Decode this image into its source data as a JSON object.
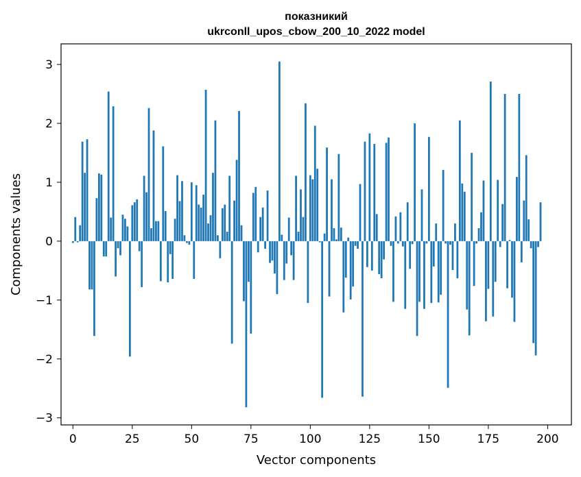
{
  "chart_data": {
    "type": "bar",
    "title_line1": "показникий",
    "title_line2": "ukrconll_upos_cbow_200_10_2022 model",
    "xlabel": "Vector components",
    "ylabel": "Components values",
    "xlim": [
      -5,
      210
    ],
    "ylim": [
      -3.12,
      3.35
    ],
    "x_ticks": [
      0,
      25,
      50,
      75,
      100,
      125,
      150,
      175,
      200
    ],
    "x_tick_labels": [
      "0",
      "25",
      "50",
      "75",
      "100",
      "125",
      "150",
      "175",
      "200"
    ],
    "y_ticks": [
      -3,
      -2,
      -1,
      0,
      1,
      2,
      3
    ],
    "y_tick_labels": [
      "−3",
      "−2",
      "−1",
      "0",
      "1",
      "2",
      "3"
    ],
    "grid": false,
    "bar_color": "#1f77b4",
    "values": [
      -0.03,
      0.41,
      -0.02,
      0.27,
      1.69,
      1.16,
      1.73,
      -0.82,
      -0.82,
      -1.61,
      0.73,
      1.15,
      1.13,
      -0.26,
      -0.26,
      2.54,
      0.4,
      2.29,
      -0.6,
      -0.12,
      -0.24,
      0.45,
      0.38,
      0.25,
      -1.96,
      0.61,
      0.66,
      0.71,
      -0.17,
      -0.78,
      1.11,
      0.83,
      2.26,
      0.22,
      1.88,
      0.34,
      0.34,
      -0.68,
      1.61,
      0.51,
      -0.7,
      -0.22,
      -0.64,
      0.38,
      1.12,
      0.68,
      1.02,
      0.1,
      -0.03,
      -0.06,
      1.0,
      -0.64,
      0.95,
      0.62,
      0.57,
      0.79,
      2.57,
      0.3,
      0.44,
      1.16,
      2.05,
      0.1,
      -0.29,
      0.56,
      0.62,
      0.16,
      1.11,
      -1.74,
      0.69,
      1.38,
      2.21,
      0.27,
      -1.02,
      -2.82,
      -0.69,
      -1.57,
      0.82,
      0.92,
      -0.19,
      0.41,
      0.57,
      -0.13,
      0.86,
      -0.37,
      -0.33,
      -0.55,
      -0.9,
      3.05,
      0.11,
      -0.66,
      -0.38,
      0.4,
      -0.24,
      -0.66,
      1.11,
      0.16,
      0.88,
      0.41,
      2.34,
      -1.05,
      1.12,
      1.05,
      1.96,
      1.23,
      -0.02,
      -2.66,
      0.13,
      1.59,
      -0.94,
      1.05,
      0.22,
      0.03,
      1.48,
      0.23,
      -1.21,
      -0.62,
      0.06,
      -0.99,
      -0.77,
      -0.08,
      -0.13,
      0.97,
      -2.64,
      1.69,
      -0.44,
      1.83,
      -0.5,
      1.65,
      0.46,
      -0.56,
      -0.63,
      -0.31,
      1.67,
      1.76,
      -0.08,
      -1.03,
      0.42,
      -0.04,
      0.49,
      -0.09,
      -1.15,
      0.66,
      -0.47,
      -0.05,
      2.0,
      -1.61,
      -1.03,
      0.88,
      -1.15,
      -0.04,
      1.77,
      -1.05,
      -0.43,
      0.3,
      -1.04,
      -0.91,
      1.21,
      -0.04,
      -2.49,
      -0.06,
      -0.49,
      0.3,
      -0.63,
      2.05,
      0.98,
      0.84,
      -1.16,
      -1.6,
      1.5,
      -0.76,
      -0.04,
      0.22,
      0.49,
      1.03,
      -1.36,
      -0.81,
      2.71,
      -1.28,
      -0.69,
      1.04,
      -0.1,
      0.63,
      2.5,
      -0.8,
      0.02,
      -0.96,
      -1.37,
      1.09,
      2.5,
      -0.36,
      0.69,
      1.46,
      0.37,
      -0.12,
      -1.73,
      -1.94,
      -0.1,
      0.66
    ]
  }
}
